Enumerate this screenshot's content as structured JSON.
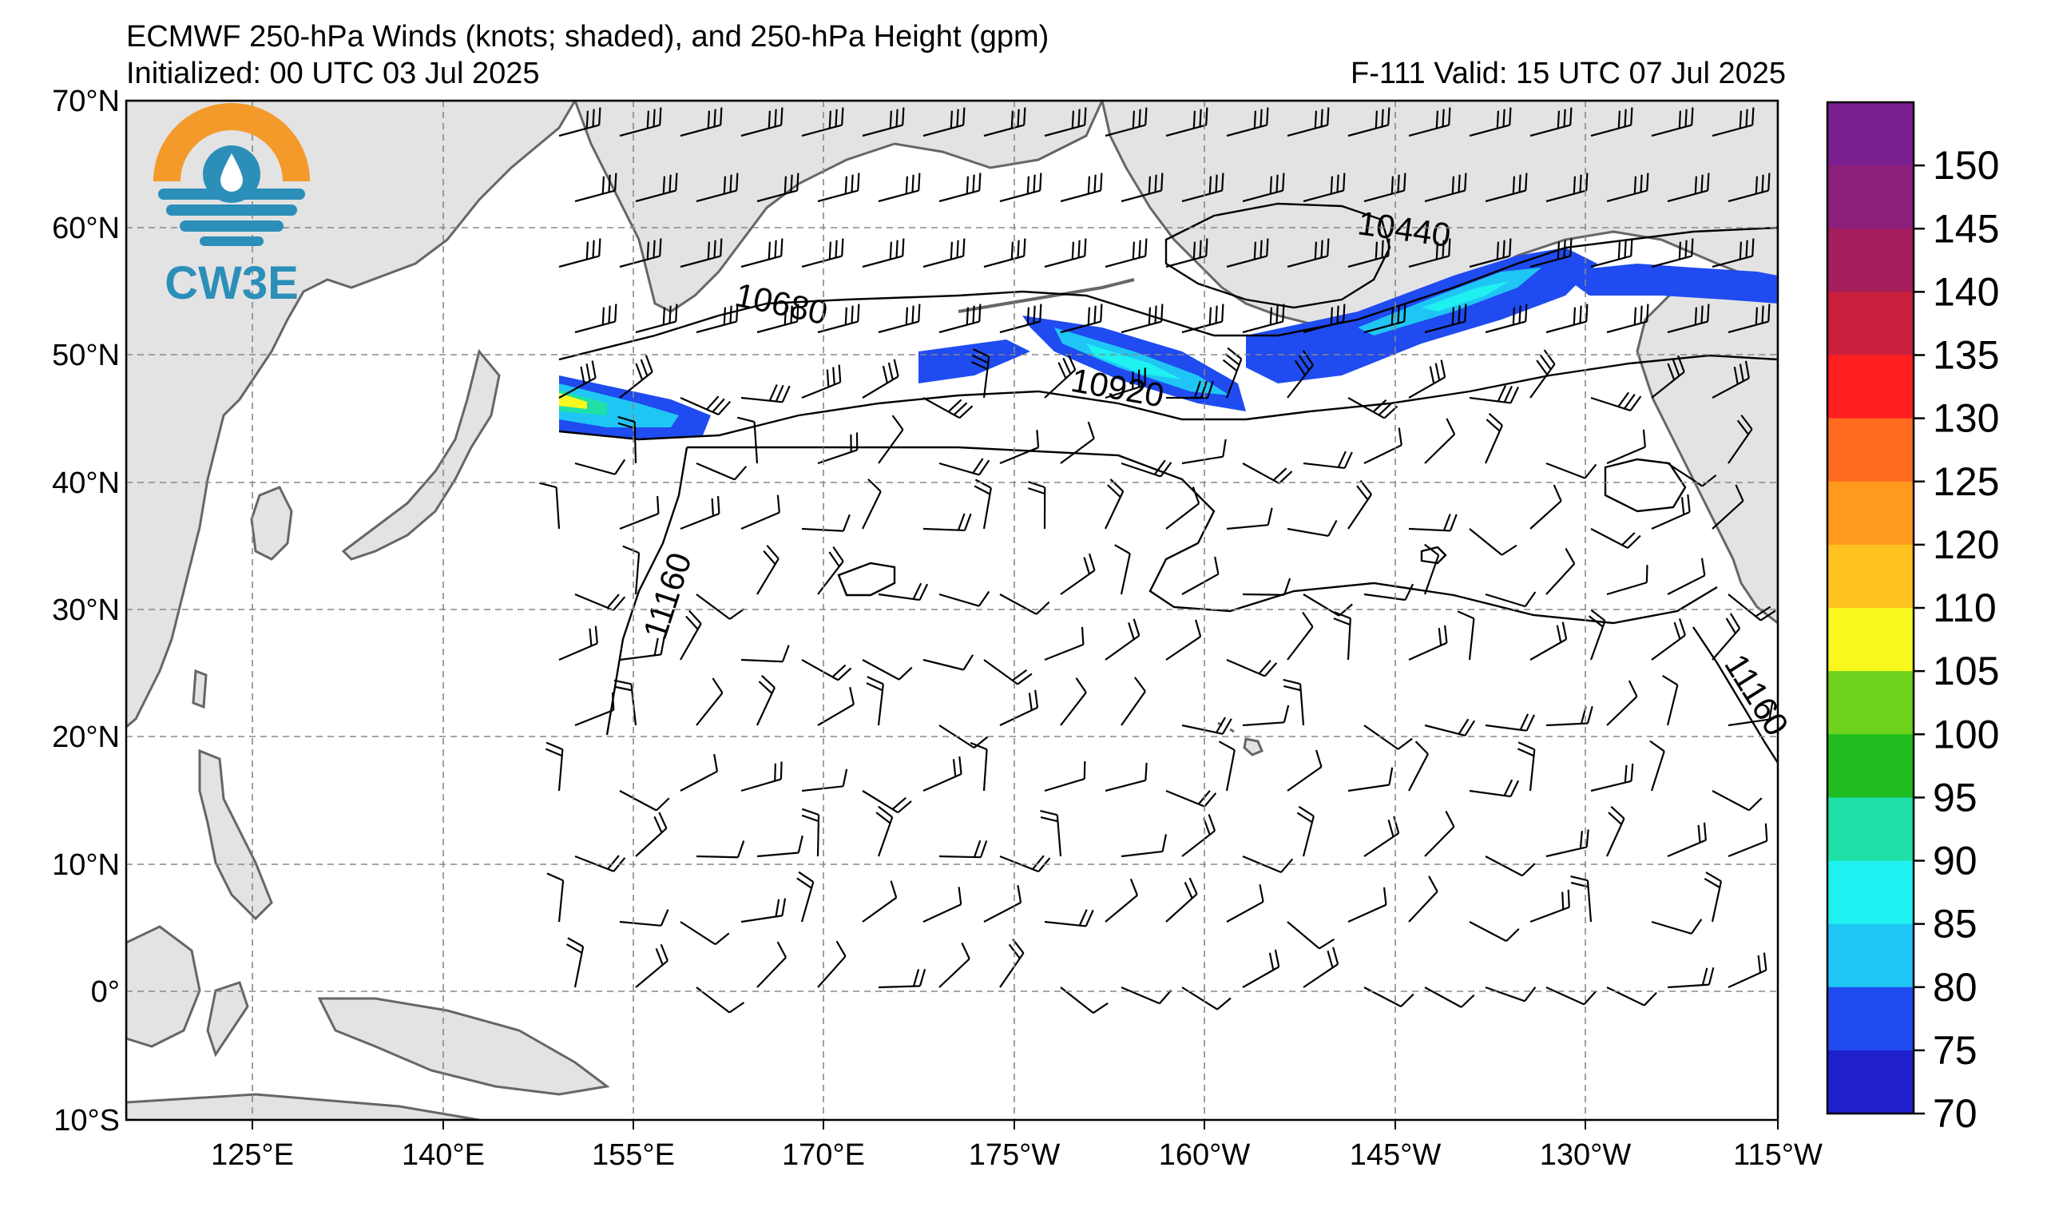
{
  "header": {
    "title": "ECMWF 250-hPa Winds (knots; shaded), and 250-hPa Height (gpm)",
    "initialized": "Initialized: 00 UTC 03 Jul 2025",
    "valid": "F-111  Valid: 15 UTC 07 Jul 2025"
  },
  "logo": {
    "text": "CW3E",
    "ring_color": "#f39a2b",
    "wave_color": "#2b8fb9"
  },
  "axes": {
    "lat_labels": [
      "70°N",
      "60°N",
      "50°N",
      "40°N",
      "30°N",
      "20°N",
      "10°N",
      "0°",
      "10°S"
    ],
    "lon_labels": [
      "125°E",
      "140°E",
      "155°E",
      "170°E",
      "175°W",
      "160°W",
      "145°W",
      "130°W",
      "115°W"
    ]
  },
  "contours": {
    "labels": [
      "10440",
      "10680",
      "10920",
      "11160",
      "11160"
    ]
  },
  "colorbar": {
    "labels": [
      "150",
      "145",
      "140",
      "135",
      "130",
      "125",
      "120",
      "110",
      "105",
      "100",
      "95",
      "90",
      "85",
      "80",
      "75",
      "70"
    ],
    "colors": [
      "#7a1f8f",
      "#8b1f7a",
      "#a61e5c",
      "#c8203c",
      "#ff1f1f",
      "#ff6a1f",
      "#ff9a1f",
      "#ffc21f",
      "#f8f81f",
      "#6ed21f",
      "#1fbd1f",
      "#1fe0a6",
      "#1ff0f0",
      "#1fc6f5",
      "#1f4bf0",
      "#1f1fcc"
    ]
  },
  "colors": {
    "land": "#e3e3e3",
    "coast": "#666666",
    "grid": "#888888"
  }
}
